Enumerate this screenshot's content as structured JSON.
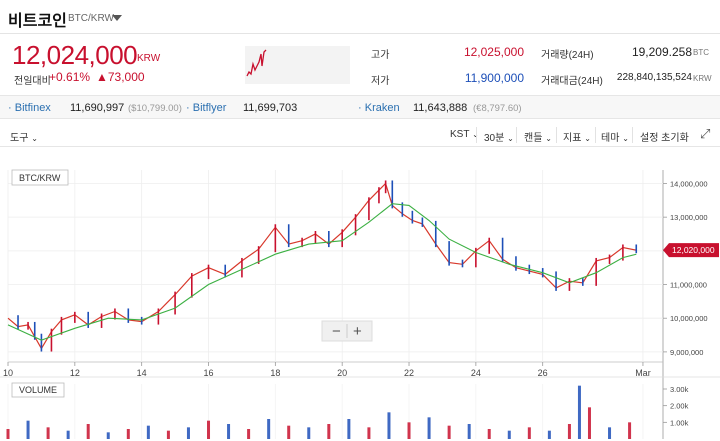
{
  "header": {
    "coin_name": "비트코인",
    "pair": "BTC/KRW"
  },
  "summary": {
    "price": "12,024,000",
    "unit": "KRW",
    "change_label": "전일대비",
    "change_pct": "+0.61%",
    "change_amt": "▲73,000"
  },
  "stats": {
    "high_label": "고가",
    "high_value": "12,025,000",
    "low_label": "저가",
    "low_value": "11,900,000",
    "volume_label": "거래량(24H)",
    "volume_value": "19,209.258",
    "volume_unit": "BTC",
    "amount_label": "거래대금(24H)",
    "amount_value": "228,840,135,524",
    "amount_unit": "KRW"
  },
  "exchanges": [
    {
      "name": "Bitfinex",
      "value": "11,690,997",
      "sub": "($10,799.00)"
    },
    {
      "name": "Bitflyer",
      "value": "11,699,703",
      "sub": ""
    },
    {
      "name": "Kraken",
      "value": "11,643,888",
      "sub": "(€8,797.60)"
    }
  ],
  "toolbar": {
    "tools": "도구",
    "timezone": "KST",
    "interval": "30분",
    "chart_type": "캔들",
    "indicator": "지표",
    "theme": "테마",
    "reset": "설정 초기화"
  },
  "colors": {
    "up": "#c8102e",
    "down": "#1d4fb8",
    "ma_fast": "#d8382b",
    "ma_slow": "#3cb043",
    "accent_blue": "#2a6fb0"
  },
  "chart_data": {
    "type": "line",
    "title": "BTC/KRW",
    "xlabel": "",
    "ylabel": "",
    "x_ticks": [
      "10",
      "12",
      "14",
      "16",
      "18",
      "20",
      "22",
      "24",
      "26",
      "Mar"
    ],
    "xlim": [
      10,
      29.6
    ],
    "y_ticks": [
      "14,000,000",
      "13,000,000",
      "12,000,000",
      "11,000,000",
      "10,000,000",
      "9,000,000"
    ],
    "ylim": [
      8700000,
      14400000
    ],
    "current_price_label": "12,020,000",
    "series": [
      {
        "x": [
          10.0,
          10.3,
          10.6,
          10.8,
          11.0,
          11.3,
          11.6,
          12.0,
          12.4,
          12.8,
          13.2,
          13.6,
          14.0,
          14.5,
          15.0,
          15.5,
          16.0,
          16.5,
          17.0,
          17.5,
          18.0,
          18.4,
          18.8,
          19.2,
          19.6,
          20.0,
          20.4,
          20.8,
          21.1,
          21.3,
          21.5,
          21.8,
          22.1,
          22.4,
          22.8,
          23.2,
          23.6,
          24.0,
          24.4,
          24.8,
          25.2,
          25.6,
          26.0,
          26.4,
          26.8,
          27.2,
          27.6,
          28.0,
          28.4,
          28.8
        ],
        "values": [
          10000000,
          9750000,
          9800000,
          9450000,
          9100000,
          9600000,
          9950000,
          10100000,
          9800000,
          10050000,
          10200000,
          9950000,
          9900000,
          10200000,
          10700000,
          11250000,
          11500000,
          11300000,
          11700000,
          12050000,
          12700000,
          12200000,
          12300000,
          12500000,
          12200000,
          12550000,
          13000000,
          13500000,
          13800000,
          14000000,
          13350000,
          13100000,
          12900000,
          12800000,
          12200000,
          11650000,
          11600000,
          12000000,
          12300000,
          11750000,
          11500000,
          11400000,
          11300000,
          10900000,
          11100000,
          11050000,
          11700000,
          11800000,
          12100000,
          12020000
        ]
      },
      {
        "x": [
          10.0,
          11.0,
          12.0,
          13.0,
          14.0,
          15.0,
          16.0,
          17.0,
          18.0,
          19.0,
          20.0,
          20.8,
          21.5,
          22.0,
          22.6,
          23.2,
          24.0,
          25.0,
          26.0,
          26.8,
          27.6,
          28.4,
          28.8
        ],
        "values": [
          9800000,
          9350000,
          9700000,
          10000000,
          9950000,
          10300000,
          11000000,
          11450000,
          11900000,
          12200000,
          12300000,
          12850000,
          13400000,
          13350000,
          12900000,
          12350000,
          11950000,
          11600000,
          11350000,
          11050000,
          11350000,
          11800000,
          11900000
        ]
      }
    ],
    "volume": {
      "title": "VOLUME",
      "y_ticks": [
        "3.00k",
        "2.00k",
        "1.00k"
      ],
      "ylim": [
        0,
        3300
      ],
      "x": [
        10.0,
        10.6,
        11.2,
        11.8,
        12.4,
        13.0,
        13.6,
        14.2,
        14.8,
        15.4,
        16.0,
        16.6,
        17.2,
        17.8,
        18.4,
        19.0,
        19.6,
        20.2,
        20.8,
        21.4,
        22.0,
        22.6,
        23.2,
        23.8,
        24.4,
        25.0,
        25.6,
        26.2,
        26.8,
        27.1,
        27.4,
        28.0,
        28.6
      ],
      "values": [
        600,
        1100,
        700,
        500,
        900,
        400,
        600,
        800,
        500,
        700,
        1100,
        900,
        600,
        1200,
        800,
        700,
        900,
        1200,
        700,
        1600,
        1000,
        1300,
        800,
        900,
        600,
        500,
        700,
        500,
        900,
        3200,
        1900,
        700,
        1000
      ]
    }
  }
}
